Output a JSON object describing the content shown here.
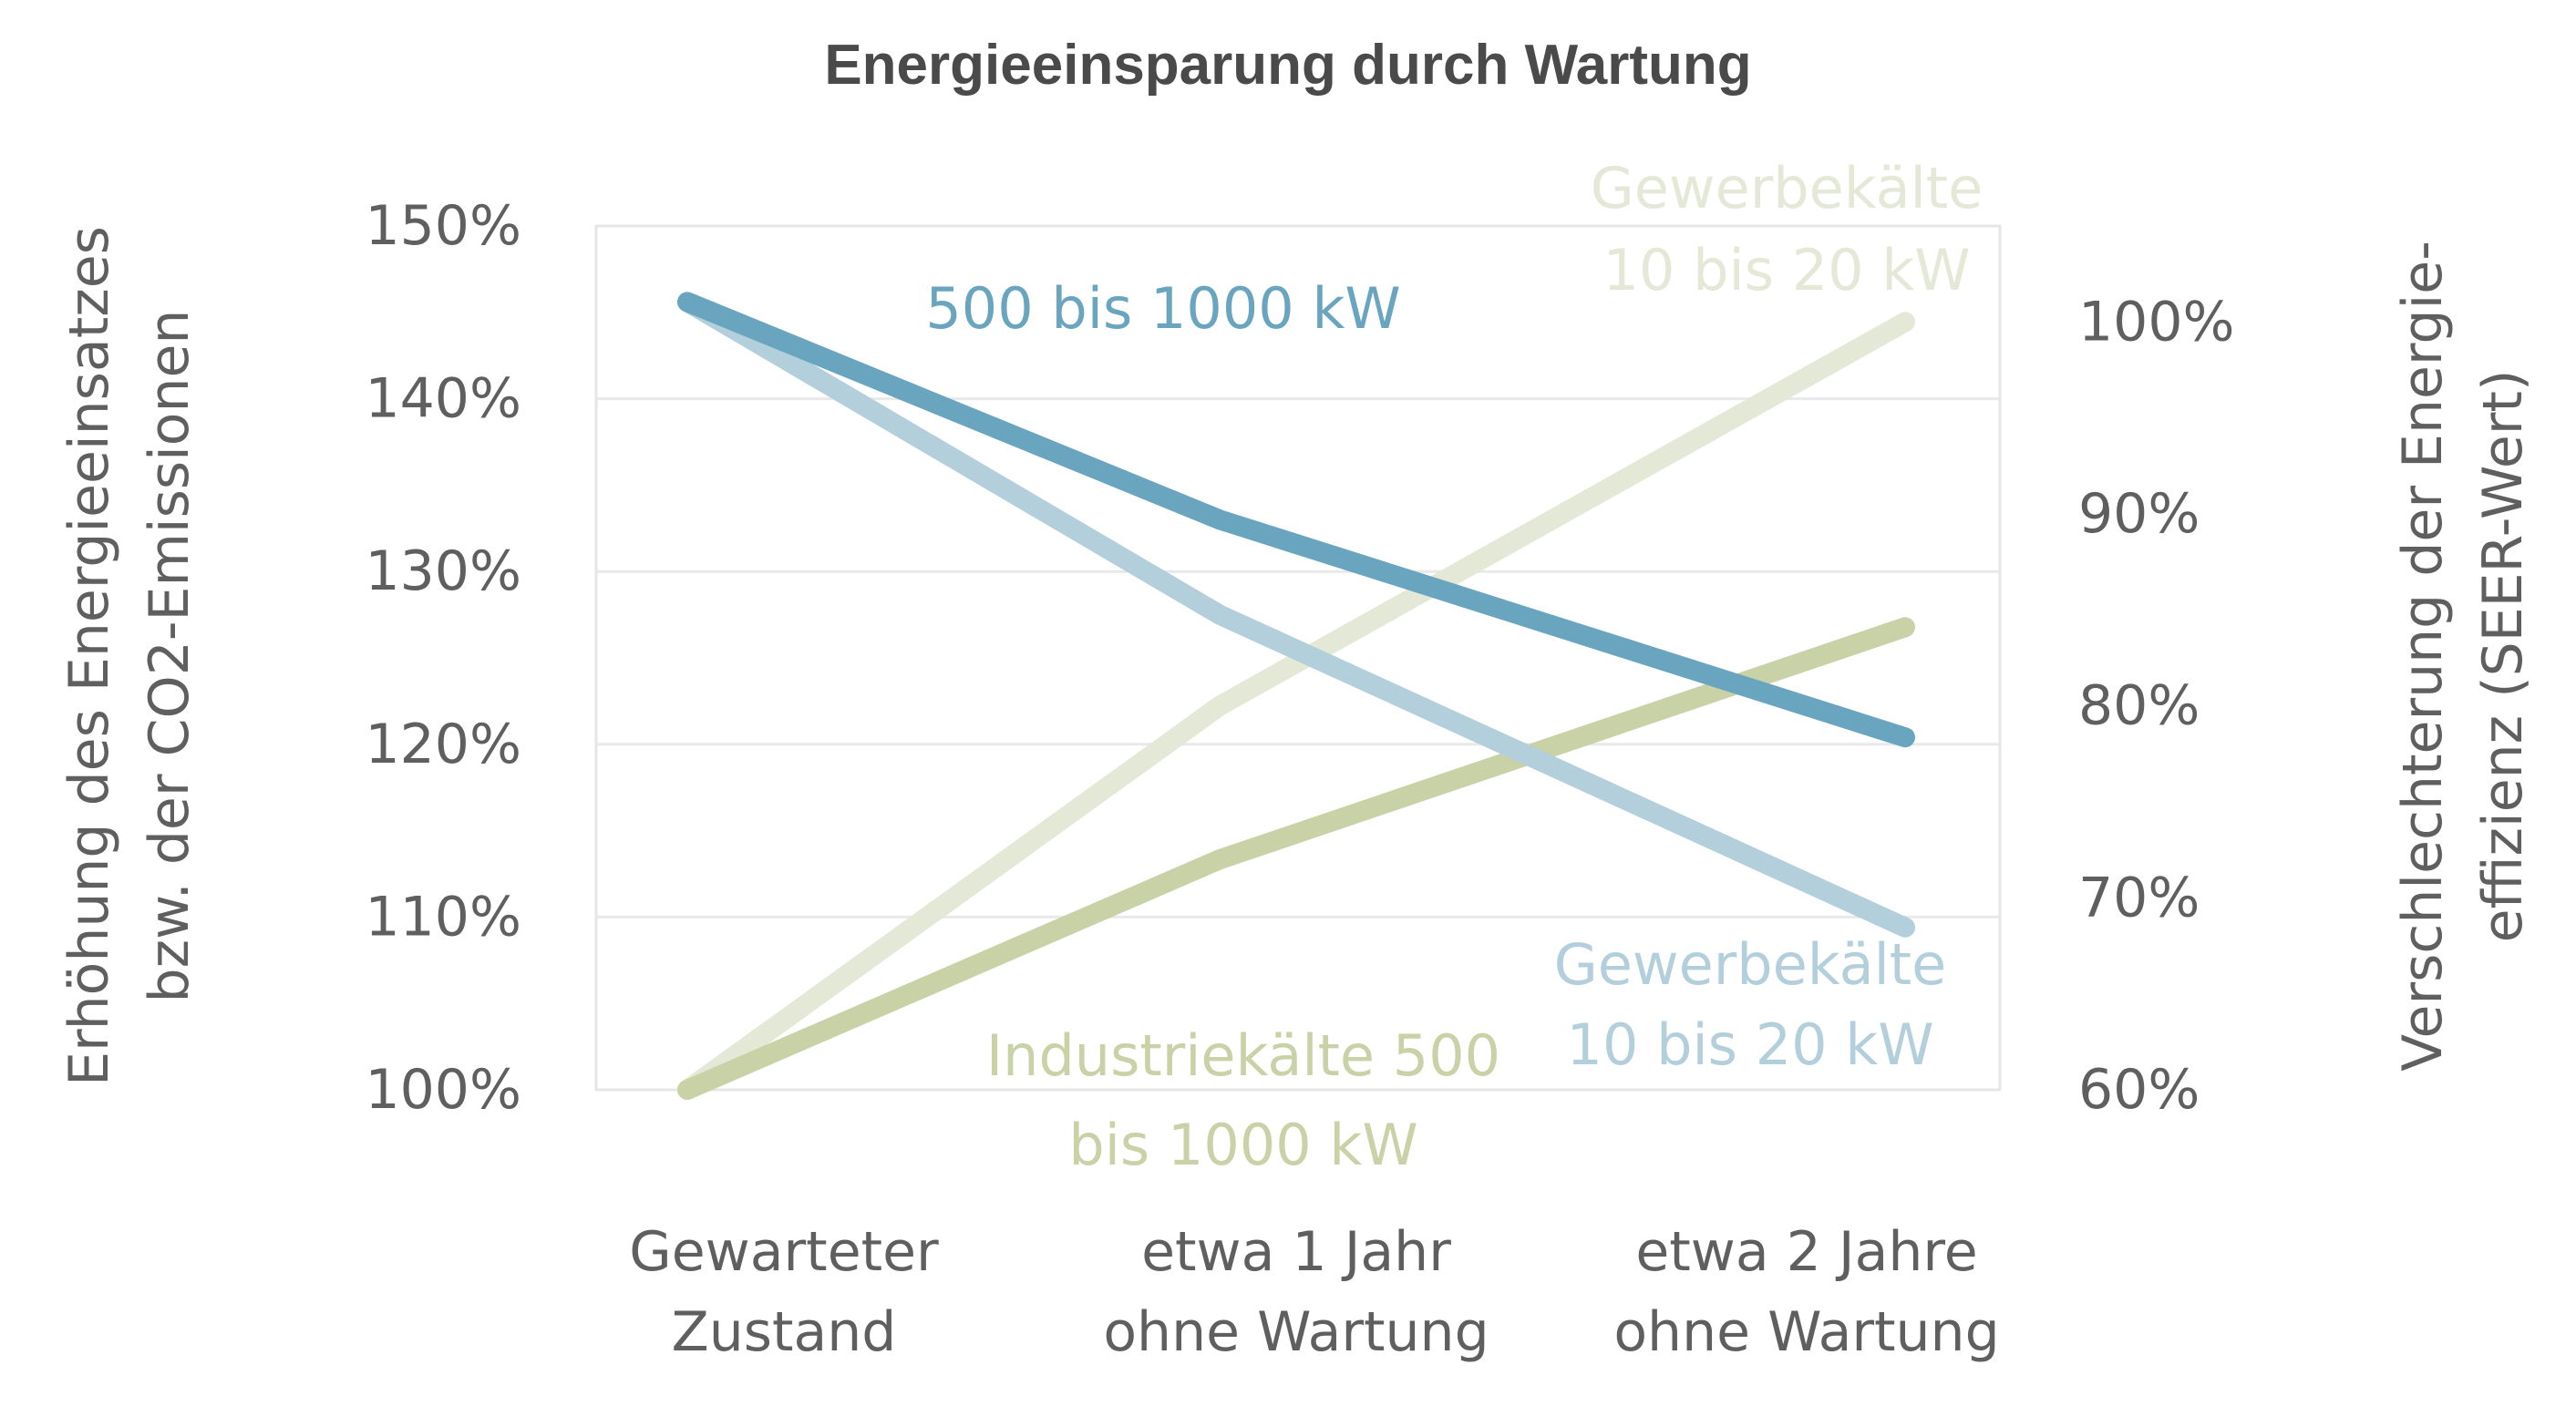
{
  "chart_data": {
    "type": "line",
    "title": "Energieeinsparung durch Wartung",
    "categories": [
      [
        "Gewarteter",
        "Zustand"
      ],
      [
        "etwa 1 Jahr",
        "ohne Wartung"
      ],
      [
        "etwa 2 Jahre",
        "ohne Wartung"
      ]
    ],
    "y_left": {
      "label": [
        "Erhöhung des Energieeinsatzes",
        "bzw. der CO2-Emissionen"
      ],
      "ylim": [
        100,
        150
      ],
      "ticks": [
        "100%",
        "110%",
        "120%",
        "130%",
        "140%",
        "150%"
      ],
      "tick_values": [
        100,
        110,
        120,
        130,
        140,
        150
      ]
    },
    "y_right": {
      "label": [
        "Verschlechterung der Energie-",
        "effizienz (SEER-Wert)"
      ],
      "ylim": [
        60,
        105
      ],
      "ticks": [
        "60%",
        "70%",
        "80%",
        "90%",
        "100%"
      ],
      "tick_values": [
        60,
        70,
        80,
        90,
        100
      ]
    },
    "grid": true,
    "series": [
      {
        "label": [
          "Gewerbekälte",
          "10 bis 20 kW"
        ],
        "axis": "right",
        "color": "#e4e8d6",
        "values": [
          60,
          80,
          100
        ]
      },
      {
        "label": [
          "Industriekälte 500",
          "bis 1000 kW"
        ],
        "axis": "right",
        "color": "#c9d2a6",
        "values": [
          60,
          72,
          84.1
        ]
      },
      {
        "label": [
          "Gewerbekälte",
          "10 bis 20 kW"
        ],
        "axis": "left",
        "color": "#b3cfdc",
        "values": [
          145.6,
          127.5,
          109.4
        ]
      },
      {
        "label": [
          "500 bis 1000 kW"
        ],
        "axis": "left",
        "color": "#6aa5bf",
        "values": [
          145.6,
          133,
          120.4
        ]
      }
    ]
  }
}
